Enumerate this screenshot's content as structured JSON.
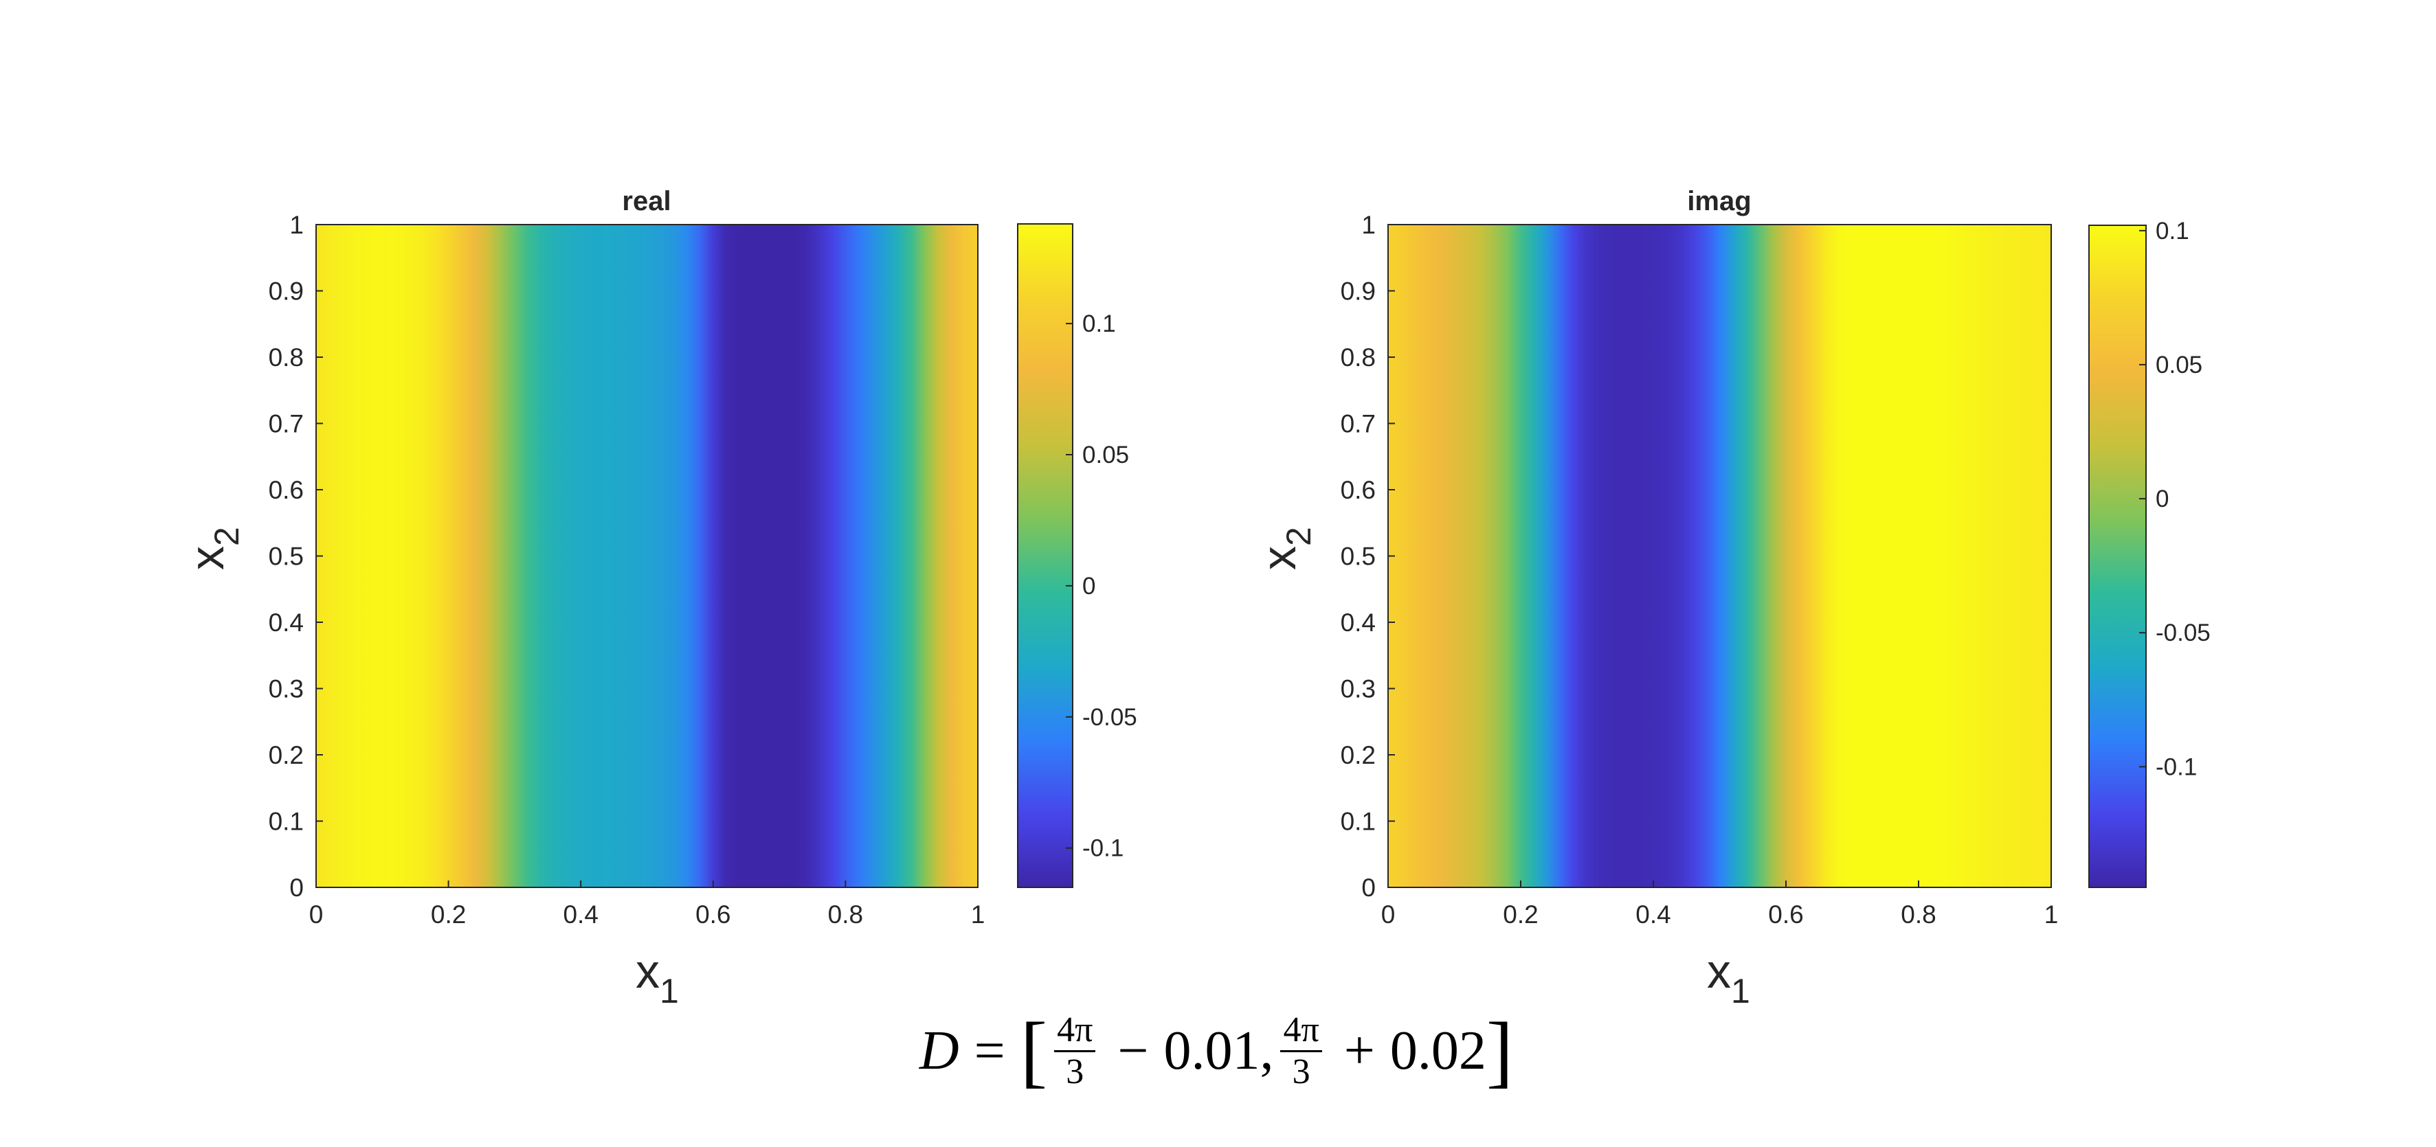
{
  "chart_data": [
    {
      "type": "heatmap",
      "title": "real",
      "xlabel": "x",
      "xlabel_sub": "1",
      "ylabel": "x",
      "ylabel_sub": "2",
      "xlim": [
        0,
        1
      ],
      "ylim": [
        0,
        1
      ],
      "xticks": [
        "0",
        "0.2",
        "0.4",
        "0.6",
        "0.8",
        "1"
      ],
      "yticks": [
        "0",
        "0.1",
        "0.2",
        "0.3",
        "0.4",
        "0.5",
        "0.6",
        "0.7",
        "0.8",
        "0.9",
        "1"
      ],
      "field_varies_along": "x1",
      "x": [
        0,
        0.02,
        0.04,
        0.06,
        0.08,
        0.1,
        0.12,
        0.14,
        0.16,
        0.18,
        0.2,
        0.22,
        0.24,
        0.26,
        0.28,
        0.3,
        0.32,
        0.34,
        0.36,
        0.38,
        0.4,
        0.42,
        0.44,
        0.46,
        0.48,
        0.5,
        0.52,
        0.54,
        0.56,
        0.58,
        0.6,
        0.62,
        0.64,
        0.66,
        0.68,
        0.7,
        0.72,
        0.74,
        0.76,
        0.78,
        0.8,
        0.82,
        0.84,
        0.86,
        0.88,
        0.9,
        0.92,
        0.94,
        0.96,
        0.98,
        1.0
      ],
      "values": [
        0.123,
        0.127,
        0.13,
        0.133,
        0.134,
        0.135,
        0.134,
        0.132,
        0.128,
        0.122,
        0.112,
        0.098,
        0.08,
        0.06,
        0.038,
        0.018,
        0.002,
        -0.012,
        -0.02,
        -0.025,
        -0.028,
        -0.03,
        -0.031,
        -0.032,
        -0.033,
        -0.035,
        -0.038,
        -0.043,
        -0.052,
        -0.07,
        -0.096,
        -0.112,
        -0.118,
        -0.12,
        -0.12,
        -0.119,
        -0.117,
        -0.112,
        -0.103,
        -0.09,
        -0.075,
        -0.062,
        -0.049,
        -0.036,
        -0.02,
        0.002,
        0.028,
        0.055,
        0.08,
        0.097,
        0.107
      ],
      "colorbar": {
        "range": [
          -0.115,
          0.138
        ],
        "ticks": [
          -0.1,
          -0.05,
          0,
          0.05,
          0.1
        ],
        "tick_labels": [
          "-0.1",
          "-0.05",
          "0",
          "0.05",
          "0.1"
        ]
      },
      "colormap": [
        "#3e26a8",
        "#4746eb",
        "#2f80fa",
        "#1fa9c9",
        "#2fbb9a",
        "#80c45a",
        "#c7c13c",
        "#f2b93d",
        "#f7d32c",
        "#f9fb15"
      ]
    },
    {
      "type": "heatmap",
      "title": "imag",
      "xlabel": "x",
      "xlabel_sub": "1",
      "ylabel": "x",
      "ylabel_sub": "2",
      "xlim": [
        0,
        1
      ],
      "ylim": [
        0,
        1
      ],
      "xticks": [
        "0",
        "0.2",
        "0.4",
        "0.6",
        "0.8",
        "1"
      ],
      "yticks": [
        "0",
        "0.1",
        "0.2",
        "0.3",
        "0.4",
        "0.5",
        "0.6",
        "0.7",
        "0.8",
        "0.9",
        "1"
      ],
      "field_varies_along": "x1",
      "x": [
        0,
        0.02,
        0.04,
        0.06,
        0.08,
        0.1,
        0.12,
        0.14,
        0.16,
        0.18,
        0.2,
        0.22,
        0.24,
        0.26,
        0.28,
        0.3,
        0.32,
        0.34,
        0.36,
        0.38,
        0.4,
        0.42,
        0.44,
        0.46,
        0.48,
        0.5,
        0.52,
        0.54,
        0.56,
        0.58,
        0.6,
        0.62,
        0.64,
        0.66,
        0.68,
        0.7,
        0.72,
        0.74,
        0.76,
        0.78,
        0.8,
        0.82,
        0.84,
        0.86,
        0.88,
        0.9,
        0.92,
        0.94,
        0.96,
        0.98,
        1.0
      ],
      "values": [
        0.074,
        0.068,
        0.06,
        0.052,
        0.045,
        0.038,
        0.03,
        0.02,
        0.008,
        -0.008,
        -0.028,
        -0.05,
        -0.075,
        -0.1,
        -0.12,
        -0.133,
        -0.138,
        -0.14,
        -0.14,
        -0.14,
        -0.139,
        -0.137,
        -0.132,
        -0.122,
        -0.108,
        -0.09,
        -0.068,
        -0.045,
        -0.02,
        0.006,
        0.03,
        0.055,
        0.075,
        0.09,
        0.1,
        0.106,
        0.108,
        0.108,
        0.107,
        0.106,
        0.105,
        0.103,
        0.101,
        0.099,
        0.097,
        0.096,
        0.094,
        0.093,
        0.092,
        0.091,
        0.09
      ],
      "colorbar": {
        "range": [
          -0.145,
          0.102
        ],
        "ticks": [
          -0.1,
          -0.05,
          0,
          0.05,
          0.1
        ],
        "tick_labels": [
          "-0.1",
          "-0.05",
          "0",
          "0.05",
          "0.1"
        ]
      },
      "colormap": [
        "#3e26a8",
        "#4746eb",
        "#2f80fa",
        "#1fa9c9",
        "#2fbb9a",
        "#80c45a",
        "#c7c13c",
        "#f2b93d",
        "#f7d32c",
        "#f9fb15"
      ]
    }
  ],
  "caption": {
    "lhs": "D",
    "eq": "=",
    "open": "[",
    "frac1_num": "4π",
    "frac1_den": "3",
    "minus": "−",
    "val1": "0.01,",
    "frac2_num": "4π",
    "frac2_den": "3",
    "plus": "+",
    "val2": "0.02",
    "close": "]"
  }
}
